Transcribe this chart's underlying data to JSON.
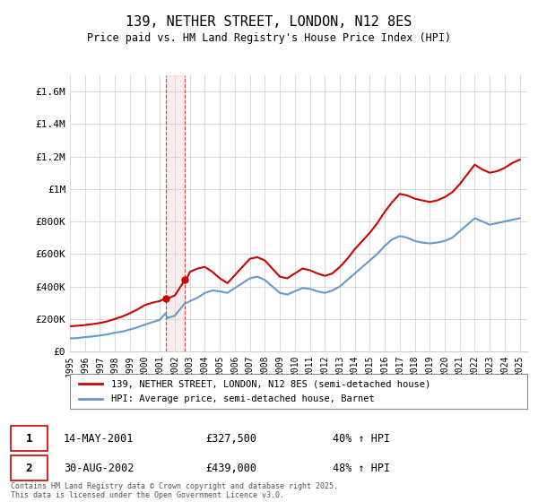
{
  "title": "139, NETHER STREET, LONDON, N12 8ES",
  "subtitle": "Price paid vs. HM Land Registry's House Price Index (HPI)",
  "legend_line1": "139, NETHER STREET, LONDON, N12 8ES (semi-detached house)",
  "legend_line2": "HPI: Average price, semi-detached house, Barnet",
  "footnote": "Contains HM Land Registry data © Crown copyright and database right 2025.\nThis data is licensed under the Open Government Licence v3.0.",
  "transaction1_label": "1",
  "transaction1_date": "14-MAY-2001",
  "transaction1_price": "£327,500",
  "transaction1_hpi": "40% ↑ HPI",
  "transaction2_label": "2",
  "transaction2_date": "30-AUG-2002",
  "transaction2_price": "£439,000",
  "transaction2_hpi": "48% ↑ HPI",
  "red_color": "#cc0000",
  "blue_color": "#6699cc",
  "vline1_x": 2001.37,
  "vline2_x": 2002.66,
  "ylim_min": 0,
  "ylim_max": 1700000,
  "xlim_min": 1995,
  "xlim_max": 2025.5,
  "yticks": [
    0,
    200000,
    400000,
    600000,
    800000,
    1000000,
    1200000,
    1400000,
    1600000
  ],
  "ytick_labels": [
    "£0",
    "£200K",
    "£400K",
    "£600K",
    "£800K",
    "£1M",
    "£1.2M",
    "£1.4M",
    "£1.6M"
  ],
  "hpi_years": [
    1995,
    1995.5,
    1996,
    1996.5,
    1997,
    1997.5,
    1998,
    1998.5,
    1999,
    1999.5,
    2000,
    2000.5,
    2001,
    2001.37,
    2001.5,
    2002,
    2002.66,
    2002.83,
    2003,
    2003.5,
    2004,
    2004.5,
    2005,
    2005.5,
    2006,
    2006.5,
    2007,
    2007.5,
    2008,
    2008.5,
    2009,
    2009.5,
    2010,
    2010.5,
    2011,
    2011.5,
    2012,
    2012.5,
    2013,
    2013.5,
    2014,
    2014.5,
    2015,
    2015.5,
    2016,
    2016.5,
    2017,
    2017.5,
    2018,
    2018.5,
    2019,
    2019.5,
    2020,
    2020.5,
    2021,
    2021.5,
    2022,
    2022.5,
    2023,
    2023.5,
    2024,
    2024.5,
    2025
  ],
  "hpi_values": [
    80000,
    82000,
    88000,
    92000,
    98000,
    105000,
    115000,
    122000,
    135000,
    148000,
    165000,
    180000,
    195000,
    233929,
    205000,
    220000,
    296622,
    300000,
    310000,
    330000,
    360000,
    375000,
    370000,
    360000,
    390000,
    420000,
    450000,
    460000,
    440000,
    400000,
    360000,
    350000,
    370000,
    390000,
    385000,
    370000,
    360000,
    375000,
    400000,
    440000,
    480000,
    520000,
    560000,
    600000,
    650000,
    690000,
    710000,
    700000,
    680000,
    670000,
    665000,
    670000,
    680000,
    700000,
    740000,
    780000,
    820000,
    800000,
    780000,
    790000,
    800000,
    810000,
    820000
  ],
  "red_years": [
    1995,
    1995.5,
    1996,
    1996.5,
    1997,
    1997.5,
    1998,
    1998.5,
    1999,
    1999.5,
    2000,
    2000.5,
    2001,
    2001.37,
    2001.5,
    2002,
    2002.66,
    2002.83,
    2003,
    2003.5,
    2004,
    2004.5,
    2005,
    2005.5,
    2006,
    2006.5,
    2007,
    2007.5,
    2008,
    2008.5,
    2009,
    2009.5,
    2010,
    2010.5,
    2011,
    2011.5,
    2012,
    2012.5,
    2013,
    2013.5,
    2014,
    2014.5,
    2015,
    2015.5,
    2016,
    2016.5,
    2017,
    2017.5,
    2018,
    2018.5,
    2019,
    2019.5,
    2020,
    2020.5,
    2021,
    2021.5,
    2022,
    2022.5,
    2023,
    2023.5,
    2024,
    2024.5,
    2025
  ],
  "red_values": [
    155000,
    158000,
    162000,
    168000,
    175000,
    185000,
    200000,
    215000,
    235000,
    258000,
    285000,
    300000,
    310000,
    327500,
    325000,
    345000,
    439000,
    455000,
    490000,
    510000,
    520000,
    490000,
    450000,
    420000,
    470000,
    520000,
    570000,
    580000,
    560000,
    510000,
    460000,
    450000,
    480000,
    510000,
    500000,
    480000,
    465000,
    480000,
    520000,
    570000,
    630000,
    680000,
    730000,
    790000,
    860000,
    920000,
    970000,
    960000,
    940000,
    930000,
    920000,
    930000,
    950000,
    980000,
    1030000,
    1090000,
    1150000,
    1120000,
    1100000,
    1110000,
    1130000,
    1160000,
    1180000
  ]
}
